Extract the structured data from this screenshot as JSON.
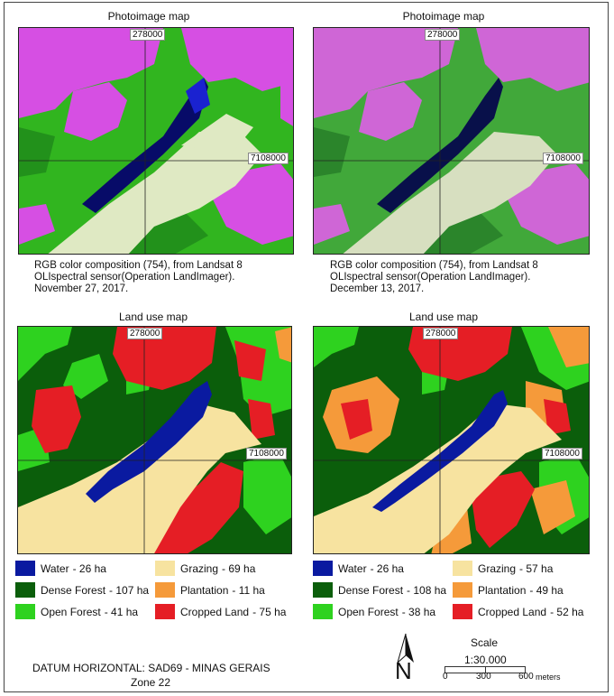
{
  "colors": {
    "water": "#0a1aa0",
    "dense": "#0b5e0b",
    "open": "#2ed21f",
    "grazing": "#f7e3a0",
    "plantation": "#f59a3a",
    "cropped": "#e51e25"
  },
  "panels": {
    "top_left": {
      "title": "Photoimage map",
      "coord_x": "278000",
      "coord_y": "7108000",
      "caption": [
        "RGB color composition (754), from Landsat 8",
        "OLIspectral sensor(Operation LandImager).",
        "November 27, 2017."
      ]
    },
    "top_right": {
      "title": "Photoimage map",
      "coord_x": "278000",
      "coord_y": "7108000",
      "caption": [
        "RGB color composition (754), from Landsat 8",
        "OLIspectral sensor(Operation LandImager).",
        "December 13, 2017."
      ]
    },
    "bottom_left": {
      "title": "Land use map",
      "coord_x": "278000",
      "coord_y": "7108000"
    },
    "bottom_right": {
      "title": "Land use map",
      "coord_x": "278000",
      "coord_y": "7108000"
    }
  },
  "legend_left": {
    "col1": [
      {
        "label": "Water",
        "value": "- 26 ha",
        "color": "water"
      },
      {
        "label": "Dense Forest",
        "value": "- 107 ha",
        "color": "dense"
      },
      {
        "label": "Open Forest",
        "value": "- 41 ha",
        "color": "open"
      }
    ],
    "col2": [
      {
        "label": "Grazing",
        "value": "- 69 ha",
        "color": "grazing"
      },
      {
        "label": "Plantation",
        "value": "- 11 ha",
        "color": "plantation"
      },
      {
        "label": "Cropped Land",
        "value": "- 75 ha",
        "color": "cropped"
      }
    ]
  },
  "legend_right": {
    "col1": [
      {
        "label": "Water",
        "value": "- 26 ha",
        "color": "water"
      },
      {
        "label": "Dense Forest",
        "value": "- 108 ha",
        "color": "dense"
      },
      {
        "label": "Open Forest",
        "value": "- 38 ha",
        "color": "open"
      }
    ],
    "col2": [
      {
        "label": "Grazing",
        "value": "- 57 ha",
        "color": "grazing"
      },
      {
        "label": "Plantation",
        "value": "- 49 ha",
        "color": "plantation"
      },
      {
        "label": "Cropped Land",
        "value": "- 52 ha",
        "color": "cropped"
      }
    ]
  },
  "footer": {
    "datum": "DATUM HORIZONTAL: SAD69 - MINAS GERAIS",
    "zone": "Zone 22",
    "north": "N",
    "scale_title": "Scale",
    "scale_ratio": "1:30.000",
    "ticks": [
      "0",
      "300",
      "600"
    ],
    "units": "meters"
  }
}
